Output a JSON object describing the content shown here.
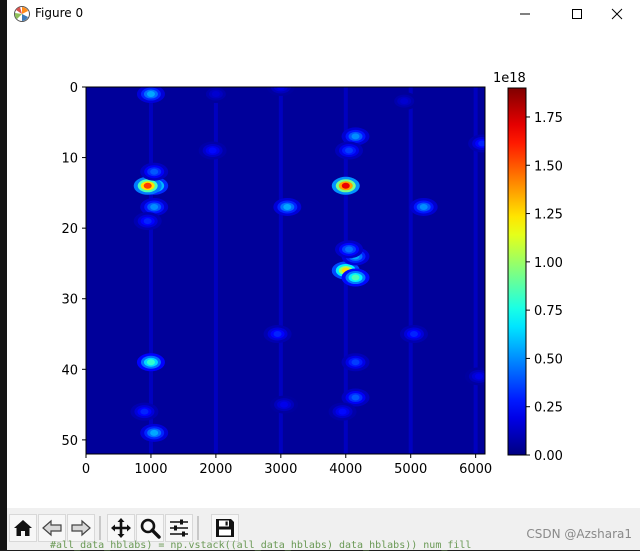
{
  "window": {
    "title": "Figure 0",
    "controls": {
      "minimize": "minimize",
      "maximize": "maximize",
      "close": "close"
    }
  },
  "chart_data": {
    "type": "heatmap",
    "title": "",
    "xlabel": "",
    "ylabel": "",
    "xlim": [
      0,
      6144
    ],
    "ylim": [
      52,
      0
    ],
    "x_ticks": [
      "0",
      "1000",
      "2000",
      "3000",
      "4000",
      "5000",
      "6000"
    ],
    "y_ticks": [
      "0",
      "10",
      "20",
      "30",
      "40",
      "50"
    ],
    "colormap": "jet",
    "colorbar": {
      "range": [
        0,
        1.9
      ],
      "offset_label": "1e18",
      "ticks": [
        "0.00",
        "0.25",
        "0.50",
        "0.75",
        "1.00",
        "1.25",
        "1.50",
        "1.75"
      ]
    },
    "background_value": 0.05,
    "hotspots": [
      {
        "x": 1000,
        "y": 1,
        "value": 0.55
      },
      {
        "x": 1050,
        "y": 14,
        "value": 1.05
      },
      {
        "x": 950,
        "y": 14,
        "value": 1.55
      },
      {
        "x": 1050,
        "y": 17,
        "value": 0.5
      },
      {
        "x": 1050,
        "y": 12,
        "value": 0.4
      },
      {
        "x": 1000,
        "y": 39,
        "value": 0.8
      },
      {
        "x": 1050,
        "y": 49,
        "value": 0.55
      },
      {
        "x": 950,
        "y": 19,
        "value": 0.3
      },
      {
        "x": 4000,
        "y": 14,
        "value": 1.7
      },
      {
        "x": 4150,
        "y": 7,
        "value": 0.5
      },
      {
        "x": 4050,
        "y": 9,
        "value": 0.35
      },
      {
        "x": 4000,
        "y": 26,
        "value": 1.25
      },
      {
        "x": 4150,
        "y": 27,
        "value": 0.85
      },
      {
        "x": 4150,
        "y": 24,
        "value": 0.55
      },
      {
        "x": 4050,
        "y": 23,
        "value": 0.45
      },
      {
        "x": 4150,
        "y": 39,
        "value": 0.35
      },
      {
        "x": 4150,
        "y": 44,
        "value": 0.4
      },
      {
        "x": 5200,
        "y": 17,
        "value": 0.5
      },
      {
        "x": 5050,
        "y": 35,
        "value": 0.3
      },
      {
        "x": 3100,
        "y": 17,
        "value": 0.55
      },
      {
        "x": 3000,
        "y": 0,
        "value": 0.2
      },
      {
        "x": 2000,
        "y": 1,
        "value": 0.15
      },
      {
        "x": 1950,
        "y": 9,
        "value": 0.25
      },
      {
        "x": 2950,
        "y": 35,
        "value": 0.3
      },
      {
        "x": 6100,
        "y": 8,
        "value": 0.3
      },
      {
        "x": 6050,
        "y": 41,
        "value": 0.2
      },
      {
        "x": 4900,
        "y": 2,
        "value": 0.15
      },
      {
        "x": 900,
        "y": 46,
        "value": 0.3
      },
      {
        "x": 3950,
        "y": 46,
        "value": 0.25
      },
      {
        "x": 3050,
        "y": 45,
        "value": 0.2
      }
    ]
  },
  "toolbar": {
    "buttons": [
      {
        "name": "home-icon",
        "label": "Home"
      },
      {
        "name": "back-icon",
        "label": "Back"
      },
      {
        "name": "forward-icon",
        "label": "Forward"
      },
      {
        "name": "pan-icon",
        "label": "Pan"
      },
      {
        "name": "zoom-icon",
        "label": "Zoom"
      },
      {
        "name": "configure-subplots-icon",
        "label": "Configure subplots"
      },
      {
        "name": "save-icon",
        "label": "Save"
      }
    ]
  },
  "watermark": "CSDN @Azshara1",
  "background_text": "#all_data_hblabs) = np.vstack((all_data_hblabs) data_hblabs)) num_fill"
}
